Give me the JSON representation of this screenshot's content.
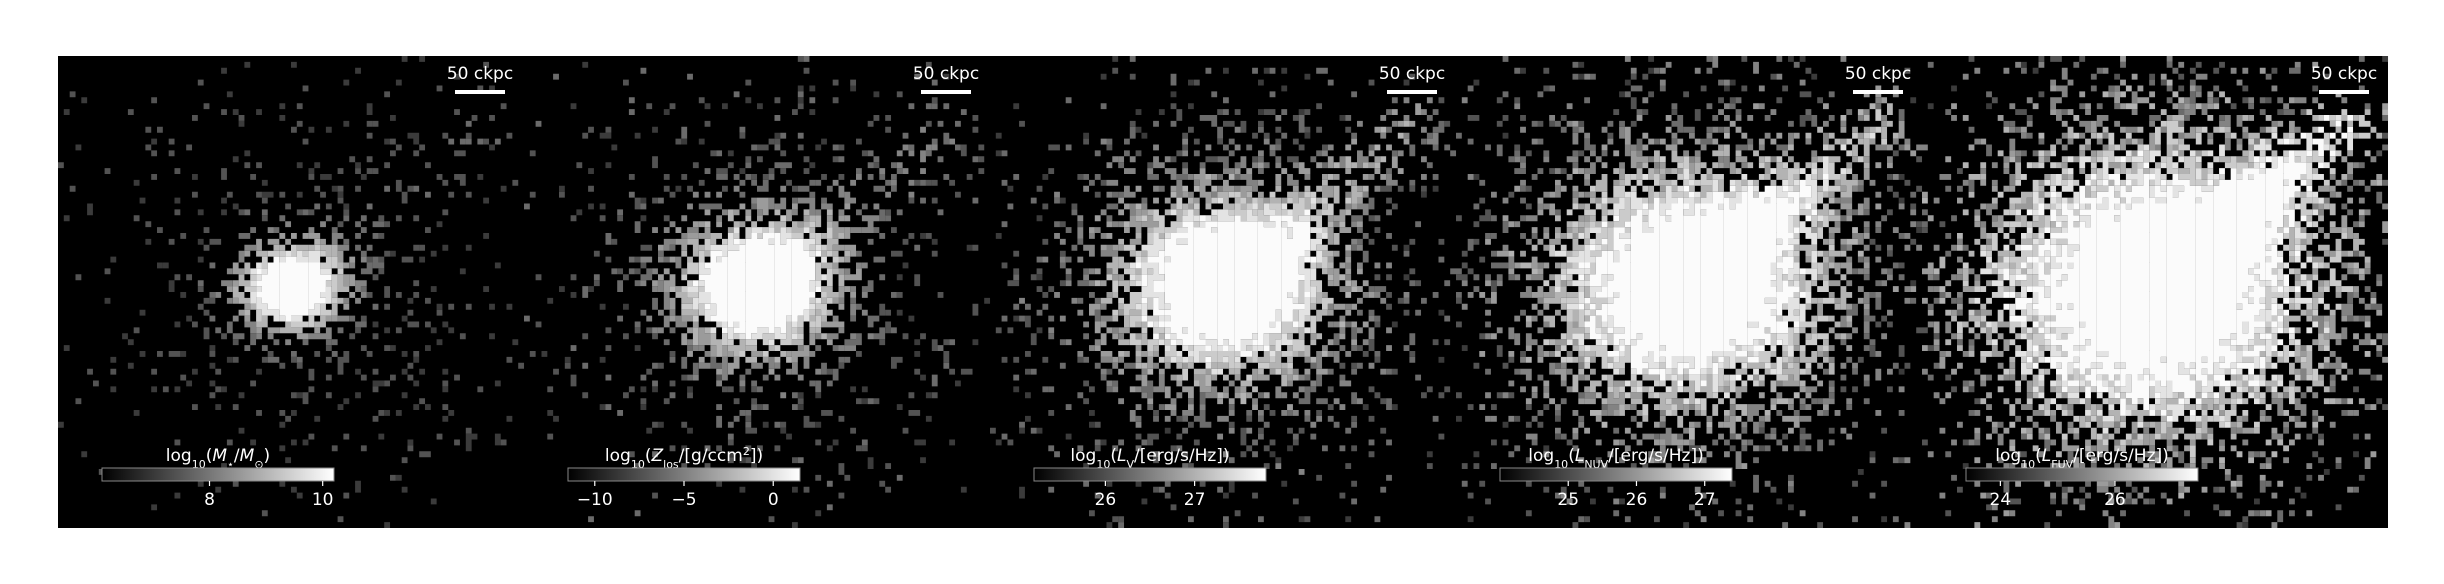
{
  "panels": [
    {
      "scale_label": "50 ckpc",
      "colorbar": {
        "label": [
          {
            "text": "log"
          },
          {
            "text": "10",
            "sub": true
          },
          {
            "text": "("
          },
          {
            "text": "M",
            "italic": true
          },
          {
            "text": "⋆",
            "sub": true
          },
          {
            "text": "/"
          },
          {
            "text": "M",
            "italic": true
          },
          {
            "text": "⊙",
            "sub": true
          },
          {
            "text": ")"
          }
        ],
        "clim": [
          6.1,
          10.2
        ],
        "ticks": [
          8,
          10
        ]
      }
    },
    {
      "scale_label": "50 ckpc",
      "colorbar": {
        "label": [
          {
            "text": "log"
          },
          {
            "text": "10",
            "sub": true
          },
          {
            "text": "("
          },
          {
            "text": "Z",
            "italic": true
          },
          {
            "text": "los",
            "sub": true
          },
          {
            "text": "/[g/ccm"
          },
          {
            "text": "2",
            "sup": true
          },
          {
            "text": "])"
          }
        ],
        "clim": [
          -11.5,
          1.5
        ],
        "ticks": [
          {
            "value": -10,
            "label": "−10"
          },
          {
            "value": -5,
            "label": "−5"
          },
          0
        ]
      }
    },
    {
      "scale_label": "50 ckpc",
      "colorbar": {
        "label": [
          {
            "text": "log"
          },
          {
            "text": "10",
            "sub": true
          },
          {
            "text": "("
          },
          {
            "text": "L",
            "italic": true
          },
          {
            "text": "V",
            "sub": true
          },
          {
            "text": "/[erg/s/Hz])"
          }
        ],
        "clim": [
          25.2,
          27.8
        ],
        "ticks": [
          26,
          27
        ]
      }
    },
    {
      "scale_label": "50 ckpc",
      "colorbar": {
        "label": [
          {
            "text": "log"
          },
          {
            "text": "10",
            "sub": true
          },
          {
            "text": "("
          },
          {
            "text": "L",
            "italic": true
          },
          {
            "text": "NUV",
            "sub": true
          },
          {
            "text": "/[erg/s/Hz])"
          }
        ],
        "clim": [
          24.0,
          27.4
        ],
        "ticks": [
          25,
          26,
          27
        ]
      }
    },
    {
      "scale_label": "50 ckpc",
      "colorbar": {
        "label": [
          {
            "text": "log"
          },
          {
            "text": "10",
            "sub": true
          },
          {
            "text": "("
          },
          {
            "text": "L",
            "italic": true
          },
          {
            "text": "FUV",
            "sub": true
          },
          {
            "text": "/[erg/s/Hz])"
          }
        ],
        "clim": [
          23.4,
          27.45
        ],
        "ticks": [
          24,
          26
        ]
      }
    }
  ]
}
